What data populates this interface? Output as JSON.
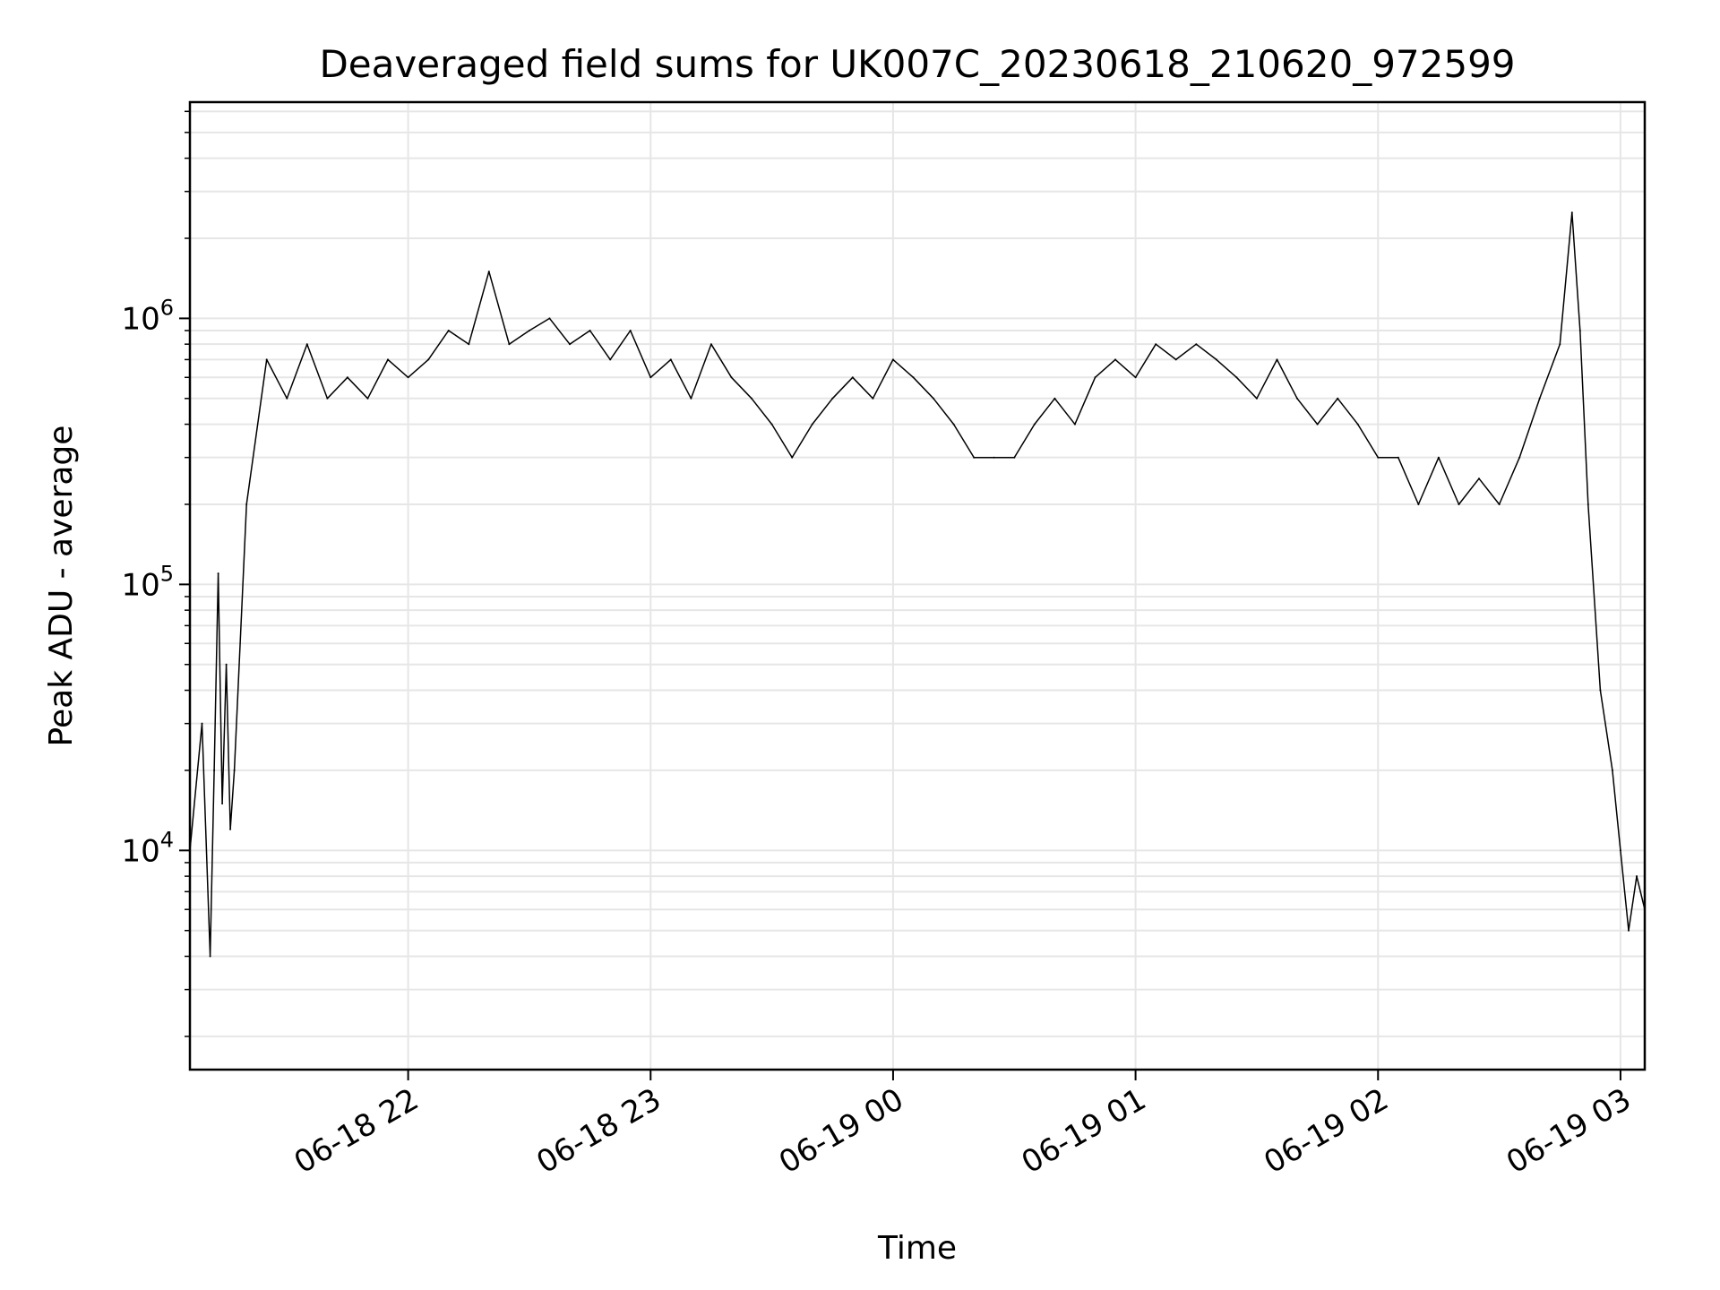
{
  "chart_data": {
    "type": "line",
    "title": "Deaveraged field sums for UK007C_20230618_210620_972599",
    "xlabel": "Time",
    "ylabel": "Peak ADU - average",
    "yscale": "log",
    "grid": true,
    "legend": "none",
    "line_color": "#000000",
    "grid_color": "#e6e6e6",
    "x_range": [
      "2023-06-18 21:06",
      "2023-06-19 03:06"
    ],
    "y_range": [
      1500,
      6500000
    ],
    "x_ticks": [
      {
        "value": "2023-06-18 22:00",
        "label": "06-18 22"
      },
      {
        "value": "2023-06-18 23:00",
        "label": "06-18 23"
      },
      {
        "value": "2023-06-19 00:00",
        "label": "06-19 00"
      },
      {
        "value": "2023-06-19 01:00",
        "label": "06-19 01"
      },
      {
        "value": "2023-06-19 02:00",
        "label": "06-19 02"
      },
      {
        "value": "2023-06-19 03:00",
        "label": "06-19 03"
      }
    ],
    "y_ticks": [
      {
        "value": 10000,
        "base": "10",
        "exp": "4"
      },
      {
        "value": 100000,
        "base": "10",
        "exp": "5"
      },
      {
        "value": 1000000,
        "base": "10",
        "exp": "6"
      }
    ],
    "series": [
      {
        "x": [
          "2023-06-18 21:06",
          "2023-06-18 21:09",
          "2023-06-18 21:11",
          "2023-06-18 21:12",
          "2023-06-18 21:13",
          "2023-06-18 21:14",
          "2023-06-18 21:15",
          "2023-06-18 21:16",
          "2023-06-18 21:17",
          "2023-06-18 21:20",
          "2023-06-18 21:25",
          "2023-06-18 21:30",
          "2023-06-18 21:35",
          "2023-06-18 21:40",
          "2023-06-18 21:45",
          "2023-06-18 21:50",
          "2023-06-18 21:55",
          "2023-06-18 22:00",
          "2023-06-18 22:05",
          "2023-06-18 22:10",
          "2023-06-18 22:15",
          "2023-06-18 22:20",
          "2023-06-18 22:25",
          "2023-06-18 22:30",
          "2023-06-18 22:35",
          "2023-06-18 22:40",
          "2023-06-18 22:45",
          "2023-06-18 22:50",
          "2023-06-18 22:55",
          "2023-06-18 23:00",
          "2023-06-18 23:05",
          "2023-06-18 23:10",
          "2023-06-18 23:15",
          "2023-06-18 23:20",
          "2023-06-18 23:25",
          "2023-06-18 23:30",
          "2023-06-18 23:35",
          "2023-06-18 23:40",
          "2023-06-18 23:45",
          "2023-06-18 23:50",
          "2023-06-18 23:55",
          "2023-06-19 00:00",
          "2023-06-19 00:05",
          "2023-06-19 00:10",
          "2023-06-19 00:15",
          "2023-06-19 00:20",
          "2023-06-19 00:25",
          "2023-06-19 00:30",
          "2023-06-19 00:35",
          "2023-06-19 00:40",
          "2023-06-19 00:45",
          "2023-06-19 00:50",
          "2023-06-19 00:55",
          "2023-06-19 01:00",
          "2023-06-19 01:05",
          "2023-06-19 01:10",
          "2023-06-19 01:15",
          "2023-06-19 01:20",
          "2023-06-19 01:25",
          "2023-06-19 01:30",
          "2023-06-19 01:35",
          "2023-06-19 01:40",
          "2023-06-19 01:45",
          "2023-06-19 01:50",
          "2023-06-19 01:55",
          "2023-06-19 02:00",
          "2023-06-19 02:05",
          "2023-06-19 02:10",
          "2023-06-19 02:15",
          "2023-06-19 02:20",
          "2023-06-19 02:25",
          "2023-06-19 02:30",
          "2023-06-19 02:35",
          "2023-06-19 02:40",
          "2023-06-19 02:45",
          "2023-06-19 02:48",
          "2023-06-19 02:50",
          "2023-06-19 02:52",
          "2023-06-19 02:55",
          "2023-06-19 02:58",
          "2023-06-19 03:00",
          "2023-06-19 03:02",
          "2023-06-19 03:04",
          "2023-06-19 03:06"
        ],
        "y": [
          10000,
          30000,
          4000,
          20000,
          110000,
          15000,
          50000,
          12000,
          20000,
          200000,
          700000,
          500000,
          800000,
          500000,
          600000,
          500000,
          700000,
          600000,
          700000,
          900000,
          800000,
          1500000,
          800000,
          900000,
          1000000,
          800000,
          900000,
          700000,
          900000,
          600000,
          700000,
          500000,
          800000,
          600000,
          500000,
          400000,
          300000,
          400000,
          500000,
          600000,
          500000,
          700000,
          600000,
          500000,
          400000,
          300000,
          300000,
          300000,
          400000,
          500000,
          400000,
          600000,
          700000,
          600000,
          800000,
          700000,
          800000,
          700000,
          600000,
          500000,
          700000,
          500000,
          400000,
          500000,
          400000,
          300000,
          300000,
          200000,
          300000,
          200000,
          250000,
          200000,
          300000,
          500000,
          800000,
          2500000,
          900000,
          200000,
          40000,
          20000,
          10000,
          5000,
          8000,
          6000
        ]
      }
    ]
  }
}
